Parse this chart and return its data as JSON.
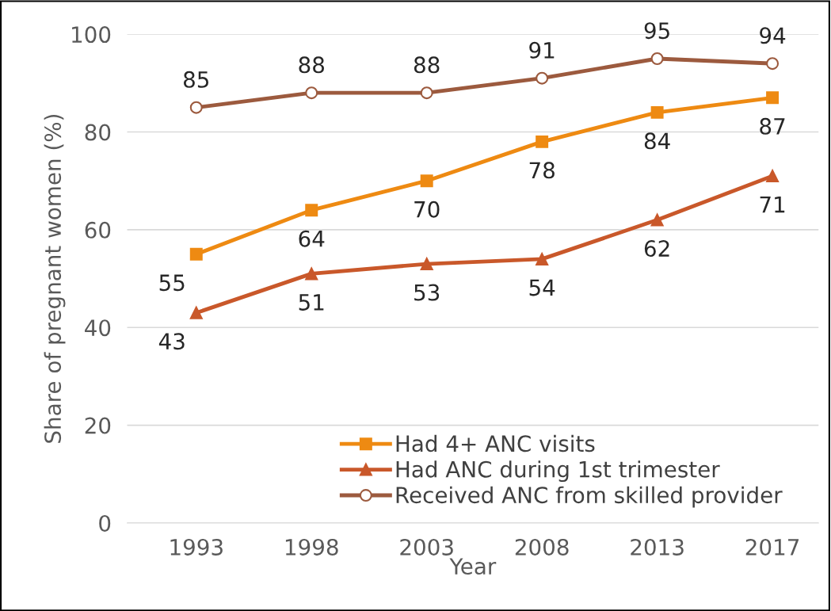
{
  "chart_data": {
    "type": "line",
    "xlabel": "Year",
    "ylabel": "Share of pregnant women (%)",
    "categories": [
      "1993",
      "1998",
      "2003",
      "2008",
      "2013",
      "2017"
    ],
    "series": [
      {
        "name": "Had 4+ ANC visits",
        "color": "#ee8a12",
        "marker": "square",
        "values": [
          55,
          64,
          70,
          78,
          84,
          87
        ]
      },
      {
        "name": "Had ANC during 1st trimester",
        "color": "#c9582a",
        "marker": "triangle",
        "values": [
          43,
          51,
          53,
          54,
          62,
          71
        ]
      },
      {
        "name": "Received ANC from skilled provider",
        "color": "#9c5a3e",
        "marker": "circle",
        "values": [
          85,
          88,
          88,
          91,
          95,
          94
        ]
      }
    ],
    "ylim": [
      0,
      100
    ],
    "yticks": [
      0,
      20,
      40,
      60,
      80,
      100
    ],
    "grid": "y",
    "legend": "bottom right",
    "data_labels": true,
    "line_style": "solid"
  }
}
